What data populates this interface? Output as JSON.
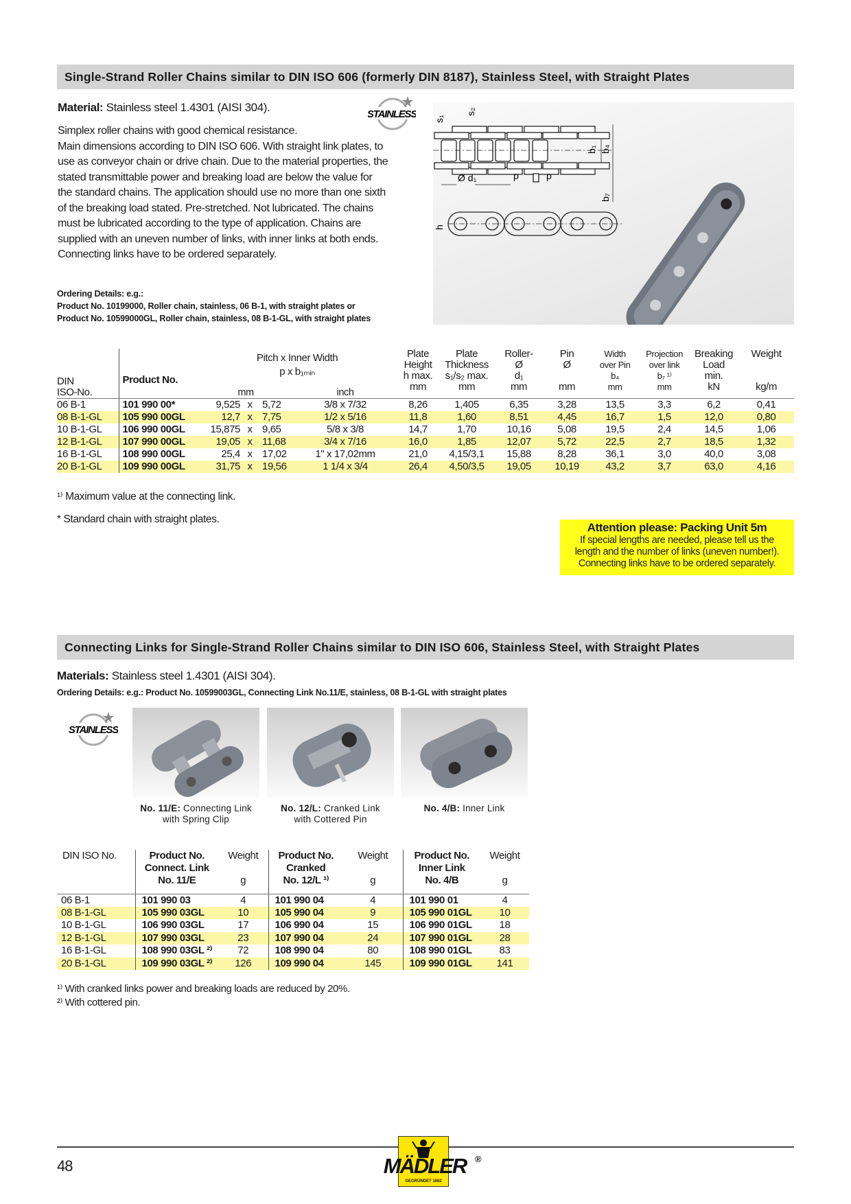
{
  "section1": {
    "title": "Single-Strand Roller Chains similar to DIN ISO 606 (formerly DIN 8187), Stainless Steel, with Straight Plates",
    "material_label": "Material:",
    "material_value": " Stainless steel 1.4301 (AISI 304).",
    "description": [
      "Simplex roller chains with good chemical resistance.",
      "Main dimensions according to DIN ISO 606. With straight link plates, to",
      "use as conveyor chain or drive chain. Due to the material properties, the",
      "stated transmittable power and breaking load are below the value for",
      "the standard chains. The application should use no more than one sixth",
      "of the breaking load stated. Pre-stretched. Not lubricated. The chains",
      "must be lubricated according to the type of application. Chains are",
      "supplied with an uneven number of links, with inner links at both ends.",
      "Connecting links have to be ordered separately."
    ],
    "ordering": [
      "Ordering Details: e.g.:",
      "Product No. 10199000, Roller chain, stainless, 06 B-1, with straight plates or",
      "Product No. 10599000GL, Roller chain, stainless, 08 B-1-GL, with straight plates"
    ],
    "stainless_logo": "STAINLESS",
    "diagram_labels": {
      "s1": "s₁",
      "s2": "s₂",
      "d1": "Ø d₁",
      "p": "p",
      "b1": "b₁",
      "b4": "b₄",
      "b7": "b₇",
      "h": "h"
    },
    "table": {
      "headers": {
        "din": [
          "DIN",
          "ISO-No."
        ],
        "product": "Product No.",
        "pitch": [
          "Pitch x Inner Width",
          "p x b₁ₘᵢₙ"
        ],
        "pitch_mm": "mm",
        "pitch_inch": "inch",
        "cols": [
          [
            "Plate",
            "Height",
            "h max.",
            "mm"
          ],
          [
            "Plate",
            "Thickness",
            "s₁/s₂ max.",
            "mm"
          ],
          [
            "Roller-",
            "Ø",
            "d₁",
            "mm"
          ],
          [
            "Pin",
            "Ø",
            "",
            "mm"
          ],
          [
            "Width",
            "over Pin",
            "b₄",
            "mm"
          ],
          [
            "Projection",
            "over link",
            "b₇ ¹⁾",
            "mm"
          ],
          [
            "Breaking",
            "Load",
            "min.",
            "kN"
          ],
          [
            "Weight",
            "",
            "",
            "kg/m"
          ]
        ]
      },
      "rows": [
        {
          "din": "06 B-1",
          "product": "101 990 00*",
          "p": "9,525",
          "x": "x",
          "b1": "5,72",
          "inch": "3/8 x 7/32",
          "vals": [
            "8,26",
            "1,405",
            "6,35",
            "3,28",
            "13,5",
            "3,3",
            "6,2",
            "0,41"
          ]
        },
        {
          "din": "08 B-1-GL",
          "product": "105 990 00GL",
          "p": "12,7",
          "x": "x",
          "b1": "7,75",
          "inch": "1/2 x 5/16",
          "vals": [
            "11,8",
            "1,60",
            "8,51",
            "4,45",
            "16,7",
            "1,5",
            "12,0",
            "0,80"
          ]
        },
        {
          "din": "10 B-1-GL",
          "product": "106 990 00GL",
          "p": "15,875",
          "x": "x",
          "b1": "9,65",
          "inch": "5/8 x 3/8",
          "vals": [
            "14,7",
            "1,70",
            "10,16",
            "5,08",
            "19,5",
            "2,4",
            "14,5",
            "1,06"
          ]
        },
        {
          "din": "12 B-1-GL",
          "product": "107 990 00GL",
          "p": "19,05",
          "x": "x",
          "b1": "11,68",
          "inch": "3/4 x 7/16",
          "vals": [
            "16,0",
            "1,85",
            "12,07",
            "5,72",
            "22,5",
            "2,7",
            "18,5",
            "1,32"
          ]
        },
        {
          "din": "16 B-1-GL",
          "product": "108 990 00GL",
          "p": "25,4",
          "x": "x",
          "b1": "17,02",
          "inch": "1\" x 17,02mm",
          "vals": [
            "21,0",
            "4,15/3,1",
            "15,88",
            "8,28",
            "36,1",
            "3,0",
            "40,0",
            "3,08"
          ]
        },
        {
          "din": "20 B-1-GL",
          "product": "109 990 00GL",
          "p": "31,75",
          "x": "x",
          "b1": "19,56",
          "inch": "1 1/4 x 3/4",
          "vals": [
            "26,4",
            "4,50/3,5",
            "19,05",
            "10,19",
            "43,2",
            "3,7",
            "63,0",
            "4,16"
          ]
        }
      ]
    },
    "footnote1": "¹⁾ Maximum value at the connecting link.",
    "footnote2": "* Standard chain with straight plates.",
    "attention": {
      "title": "Attention please: Packing Unit 5m",
      "lines": [
        "If special lengths are needed, please tell us the",
        "length and the number of links (uneven number!).",
        "Connecting links have to be ordered separately."
      ]
    }
  },
  "section2": {
    "title": "Connecting Links for Single-Strand Roller Chains similar to DIN ISO 606, Stainless Steel, with Straight Plates",
    "material_label": "Materials:",
    "material_value": " Stainless steel 1.4301 (AISI 304).",
    "ordering": "Ordering Details: e.g.: Product No. 10599003GL, Connecting Link No.11/E, stainless, 08 B-1-GL with straight plates",
    "stainless_logo": "STAINLESS",
    "photos": [
      {
        "bold": "No. 11/E:",
        "text": " Connecting Link",
        "line2": "with Spring Clip"
      },
      {
        "bold": "No. 12/L:",
        "text": " Cranked Link",
        "line2": "with Cottered Pin"
      },
      {
        "bold": "No. 4/B:",
        "text": " Inner Link",
        "line2": ""
      }
    ],
    "table": {
      "headers": {
        "din": "DIN ISO No.",
        "p1": [
          "Product No.",
          "Connect. Link",
          "No. 11/E"
        ],
        "p2": [
          "Product No.",
          "Cranked",
          "No. 12/L ¹⁾"
        ],
        "p3": [
          "Product No.",
          "Inner Link",
          "No. 4/B"
        ],
        "weight": "Weight",
        "unit": "g"
      },
      "rows": [
        [
          "06 B-1",
          "101 990 03",
          "4",
          "101 990 04",
          "4",
          "101 990 01",
          "4"
        ],
        [
          "08 B-1-GL",
          "105 990 03GL",
          "10",
          "105 990 04",
          "9",
          "105 990 01GL",
          "10"
        ],
        [
          "10 B-1-GL",
          "106 990 03GL",
          "17",
          "106 990 04",
          "15",
          "106 990 01GL",
          "18"
        ],
        [
          "12 B-1-GL",
          "107 990 03GL",
          "23",
          "107 990 04",
          "24",
          "107 990 01GL",
          "28"
        ],
        [
          "16 B-1-GL",
          "108 990 03GL ²⁾",
          "72",
          "108 990 04",
          "80",
          "108 990 01GL",
          "83"
        ],
        [
          "20 B-1-GL",
          "109 990 03GL ²⁾",
          "126",
          "109 990 04",
          "145",
          "109 990 01GL",
          "141"
        ]
      ]
    },
    "footnote1": "¹⁾ With cranked links power and breaking loads are reduced by 20%.",
    "footnote2": "²⁾ With cottered pin."
  },
  "footer": {
    "page": "48",
    "logo": "MÄDLER",
    "logo_sub": "GEGRÜNDET 1882",
    "registered": "®"
  },
  "colors": {
    "header_bar": "#d4d4d4",
    "row_highlight": "#fbf7a6",
    "attention_bg": "#ffff1a"
  }
}
